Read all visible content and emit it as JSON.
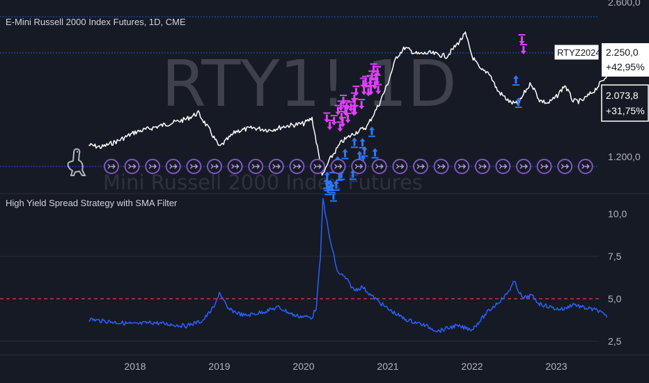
{
  "header": {
    "symbol_title": "E-Mini Russell 2000 Index Futures, 1D, CME",
    "watermark": "RTY1! 1D",
    "watermark_sub": "Mini Russell 2000 Index Futures"
  },
  "indicator": {
    "title": "High Yield Spread Strategy with SMA Filter"
  },
  "price_pane": {
    "y_ticks": [
      "2.600,0",
      "1.200,0"
    ],
    "contract_label": "RTYZ2024",
    "last_value": "2.250,0",
    "last_change": "+42,95%",
    "prev_value": "2.073,8",
    "prev_change": "+31,75%"
  },
  "x_axis": {
    "labels": [
      "2018",
      "2019",
      "2020",
      "2021",
      "2022",
      "2023"
    ]
  },
  "colors": {
    "background": "#161a25",
    "price_line": "#ffffff",
    "spread_line": "#2962ff",
    "threshold_line": "#f23645",
    "sell_marker": "#e040fb",
    "buy_marker": "#2979ff",
    "event_icon": "#7e57c2"
  },
  "chart_data": [
    {
      "type": "line",
      "name": "price",
      "x": [
        2017.45,
        2017.6,
        2017.8,
        2018.0,
        2018.2,
        2018.4,
        2018.6,
        2018.75,
        2018.9,
        2019.0,
        2019.2,
        2019.4,
        2019.6,
        2019.8,
        2020.0,
        2020.1,
        2020.2,
        2020.22,
        2020.3,
        2020.45,
        2020.6,
        2020.75,
        2020.9,
        2021.0,
        2021.1,
        2021.2,
        2021.35,
        2021.5,
        2021.7,
        2021.85,
        2021.92,
        2022.0,
        2022.1,
        2022.2,
        2022.3,
        2022.45,
        2022.55,
        2022.62,
        2022.7,
        2022.8,
        2022.9,
        2023.0,
        2023.1,
        2023.2,
        2023.3,
        2023.45,
        2023.6
      ],
      "y": [
        1400,
        1380,
        1440,
        1520,
        1560,
        1600,
        1640,
        1700,
        1520,
        1380,
        1530,
        1560,
        1540,
        1580,
        1600,
        1650,
        1220,
        1100,
        1250,
        1430,
        1510,
        1570,
        1790,
        1980,
        2220,
        2310,
        2250,
        2260,
        2230,
        2370,
        2440,
        2230,
        2100,
        2080,
        1910,
        1800,
        1780,
        1890,
        1980,
        1820,
        1790,
        1850,
        1960,
        1810,
        1810,
        1910,
        2050
      ]
    },
    {
      "type": "line",
      "name": "high-yield-spread",
      "x": [
        2017.45,
        2017.6,
        2017.8,
        2018.0,
        2018.2,
        2018.4,
        2018.6,
        2018.8,
        2018.95,
        2019.0,
        2019.1,
        2019.3,
        2019.5,
        2019.7,
        2019.9,
        2020.1,
        2020.15,
        2020.2,
        2020.23,
        2020.3,
        2020.4,
        2020.5,
        2020.6,
        2020.7,
        2020.8,
        2021.0,
        2021.2,
        2021.4,
        2021.6,
        2021.8,
        2022.0,
        2022.2,
        2022.4,
        2022.5,
        2022.6,
        2022.7,
        2022.8,
        2023.0,
        2023.1,
        2023.2,
        2023.3,
        2023.5,
        2023.6
      ],
      "y": [
        3.8,
        3.7,
        3.6,
        3.5,
        3.6,
        3.5,
        3.4,
        3.7,
        4.6,
        5.4,
        4.4,
        4.0,
        4.2,
        4.5,
        4.0,
        3.9,
        4.5,
        7.5,
        10.9,
        8.8,
        6.6,
        6.2,
        5.5,
        5.7,
        5.2,
        4.4,
        3.8,
        3.5,
        3.1,
        3.4,
        3.2,
        4.3,
        5.2,
        6.0,
        5.0,
        5.2,
        4.7,
        4.4,
        4.4,
        4.7,
        4.5,
        4.3,
        3.9
      ],
      "threshold": 5.0,
      "y_ticks": [
        10.0,
        7.5,
        5.0,
        2.5
      ],
      "y_tick_labels": [
        "10,0",
        "7,5",
        "5,0",
        "2,5"
      ]
    }
  ]
}
